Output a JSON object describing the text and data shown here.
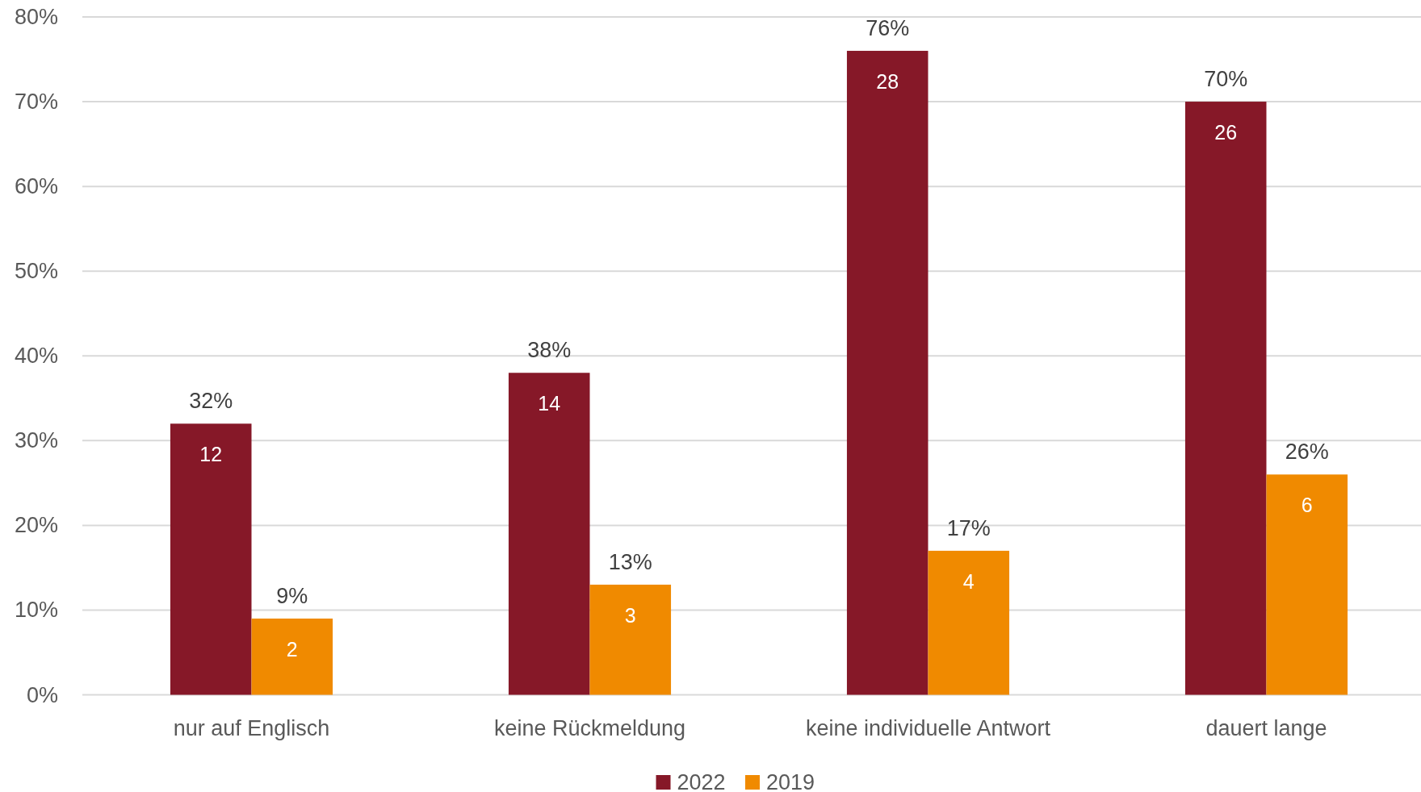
{
  "chart_data": {
    "type": "bar",
    "categories": [
      "nur auf Englisch",
      "keine Rückmeldung",
      "keine individuelle Antwort",
      "dauert lange"
    ],
    "series": [
      {
        "name": "2022",
        "color": "#861828",
        "values": [
          32,
          38,
          76,
          70
        ],
        "value_labels": [
          "32%",
          "38%",
          "76%",
          "70%"
        ]
      },
      {
        "name": "2019",
        "color": "#f08a00",
        "values": [
          9,
          13,
          17,
          26
        ],
        "value_labels": [
          "9%",
          "13%",
          "17%",
          "26%"
        ]
      }
    ],
    "ylim": [
      0,
      80
    ],
    "yticks": [
      {
        "value": 0,
        "label": "0%"
      },
      {
        "value": 10,
        "label": "10%"
      },
      {
        "value": 20,
        "label": "20%"
      },
      {
        "value": 30,
        "label": "30%"
      },
      {
        "value": 40,
        "label": "40%"
      },
      {
        "value": 50,
        "label": "50%"
      },
      {
        "value": 60,
        "label": "60%"
      },
      {
        "value": 70,
        "label": "70%"
      },
      {
        "value": 80,
        "label": "80%"
      }
    ],
    "grid": "y",
    "legend": "bottom",
    "annotations": [
      {
        "text": "12",
        "x": "nur auf Englisch",
        "y": 32
      },
      {
        "text": "14",
        "x": "keine Rückmeldung",
        "y": 38
      },
      {
        "text": "28",
        "x": "keine individuelle Antwort",
        "y": 76
      },
      {
        "text": "26",
        "x": "dauert lange",
        "y": 70
      },
      {
        "text": "2",
        "x": "nur auf Englisch",
        "y": 9
      },
      {
        "text": "3",
        "x": "keine Rückmeldung",
        "y": 13
      },
      {
        "text": "4",
        "x": "keine individuelle Antwort",
        "y": 17
      },
      {
        "text": "6",
        "x": "dauert lange",
        "y": 26
      }
    ]
  }
}
